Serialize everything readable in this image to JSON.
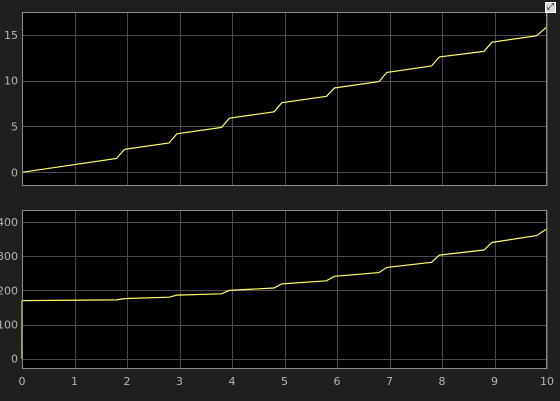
{
  "toolbar": {
    "restore_icon": "⤢"
  },
  "colors": {
    "background": "#1f1f1f",
    "axes": "#000000",
    "grid": "#4a4a4a",
    "border": "#8c8c8c",
    "tick": "#b4b4b4",
    "signal": "#ffff66"
  },
  "chart_data": [
    {
      "type": "line",
      "title": "",
      "xlabel": "",
      "ylabel": "",
      "xlim": [
        0,
        10
      ],
      "ylim": [
        -1.5,
        17.5
      ],
      "xticks": [
        0,
        1,
        2,
        3,
        4,
        5,
        6,
        7,
        8,
        9,
        10
      ],
      "yticks": [
        0,
        5,
        10,
        15
      ],
      "show_xtick_labels": false,
      "grid": true,
      "series": [
        {
          "color": "#ffff66",
          "x": [
            0,
            1.8,
            1.95,
            2.8,
            2.95,
            3.8,
            3.95,
            4.8,
            4.95,
            5.8,
            5.95,
            6.8,
            6.95,
            7.8,
            7.95,
            8.8,
            8.95,
            9.8,
            10
          ],
          "y": [
            0,
            1.5,
            2.5,
            3.2,
            4.2,
            4.9,
            5.9,
            6.6,
            7.6,
            8.3,
            9.2,
            9.9,
            10.9,
            11.6,
            12.6,
            13.2,
            14.2,
            14.9,
            15.9
          ]
        }
      ]
    },
    {
      "type": "line",
      "title": "",
      "xlabel": "",
      "ylabel": "",
      "xlim": [
        0,
        10
      ],
      "ylim": [
        -30,
        435
      ],
      "xticks": [
        0,
        1,
        2,
        3,
        4,
        5,
        6,
        7,
        8,
        9,
        10
      ],
      "yticks": [
        0,
        100,
        200,
        300,
        400
      ],
      "show_xtick_labels": true,
      "grid": true,
      "series": [
        {
          "color": "#ffff66",
          "x": [
            0,
            0.001,
            1.8,
            1.95,
            2.8,
            2.95,
            3.8,
            3.95,
            4.8,
            4.95,
            5.8,
            5.95,
            6.8,
            6.95,
            7.8,
            7.95,
            8.8,
            8.95,
            9.8,
            10
          ],
          "y": [
            0,
            170,
            172,
            176,
            180,
            186,
            190,
            200,
            207,
            219,
            228,
            241,
            252,
            267,
            282,
            303,
            318,
            340,
            360,
            380
          ]
        }
      ]
    }
  ]
}
